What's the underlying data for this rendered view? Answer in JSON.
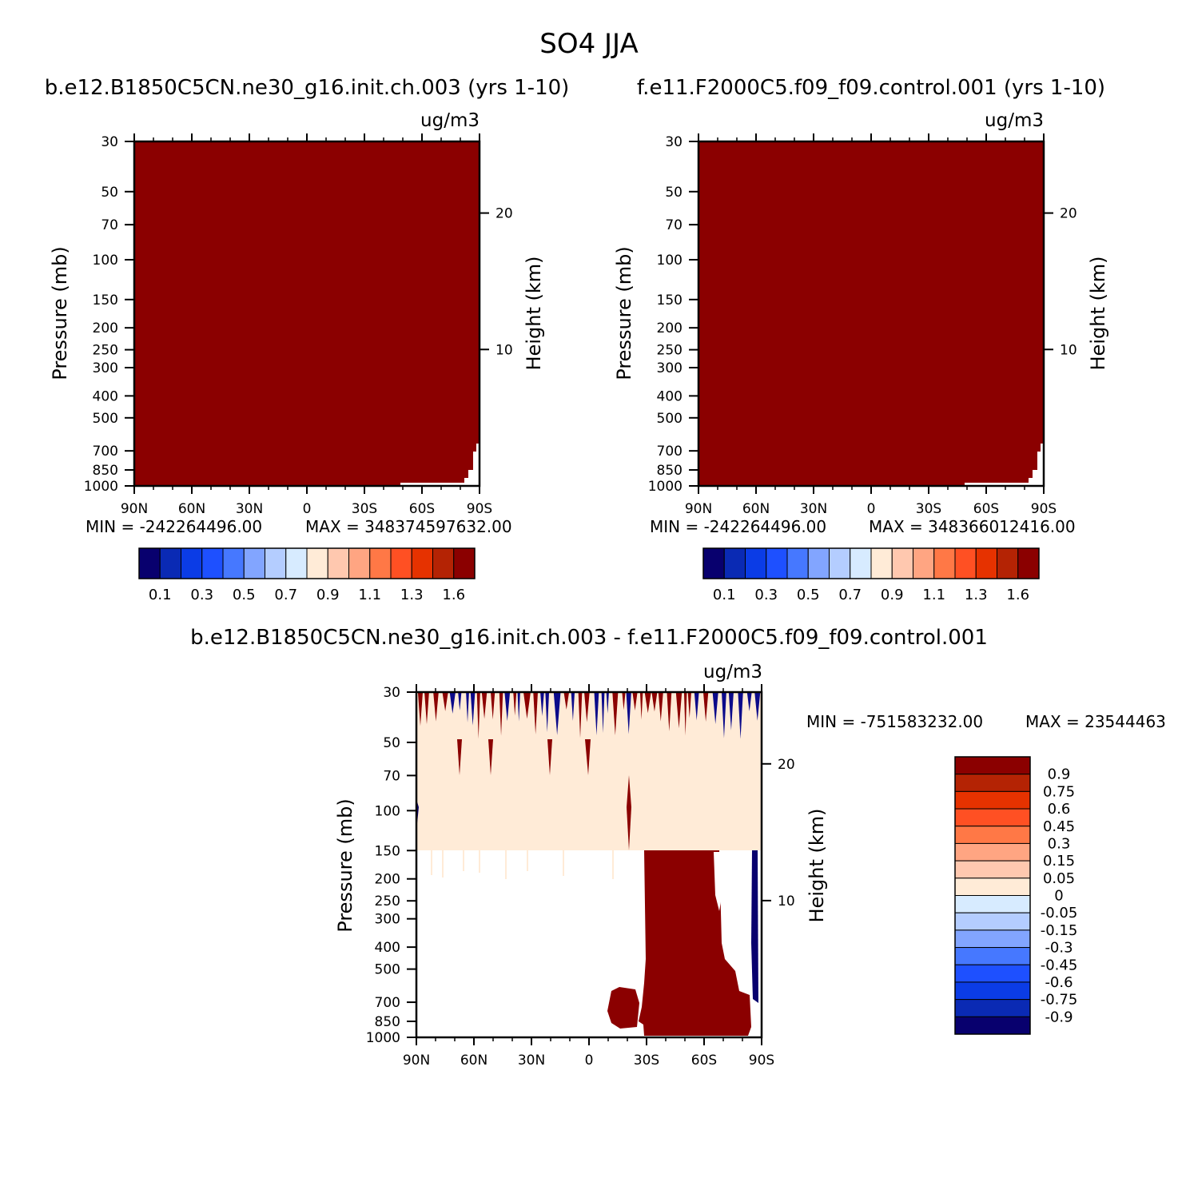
{
  "figure_title": "SO4 JJA",
  "colors": {
    "fill_max": "#8b0000",
    "diverging": [
      "#08006e",
      "#0a2ab4",
      "#0b3ce6",
      "#1e50ff",
      "#4678ff",
      "#82a5ff",
      "#b4cdff",
      "#d7ebff",
      "#ffebd7",
      "#ffc8af",
      "#ffa582",
      "#ff7846",
      "#ff5023",
      "#e63200",
      "#b42304",
      "#8b0000"
    ],
    "diff": [
      "#08006e",
      "#0a2ab4",
      "#0b3ce6",
      "#1e50ff",
      "#4678ff",
      "#82a5ff",
      "#b4cdff",
      "#d7ebff",
      "#ffebd7",
      "#ffc8af",
      "#ffa582",
      "#ff7846",
      "#ff5023",
      "#e63200",
      "#b42304",
      "#8b0000"
    ]
  },
  "chart_data": [
    {
      "type": "heatmap",
      "id": "case1",
      "title": "b.e12.B1850C5CN.ne30_g16.init.ch.003 (yrs 1-10)",
      "units": "ug/m3",
      "xlabel": "",
      "ylabel": "Pressure (mb)",
      "ylabel_right": "Height (km)",
      "x_tick_labels": [
        "90N",
        "60N",
        "30N",
        "0",
        "30S",
        "60S",
        "90S"
      ],
      "y_ticks": [
        30,
        50,
        70,
        100,
        150,
        200,
        250,
        300,
        400,
        500,
        700,
        850,
        1000
      ],
      "y_range": [
        1000,
        30
      ],
      "height_ticks": [
        10,
        20
      ],
      "min_text": "MIN = -242264496.00",
      "max_text": "MAX = 348374597632.00",
      "colorbar_labels": [
        "0.1",
        "0.3",
        "0.5",
        "0.7",
        "0.9",
        "1.1",
        "1.3",
        "1.6"
      ],
      "field_summary": "nearly all values exceed top contour level (1.6)"
    },
    {
      "type": "heatmap",
      "id": "case2",
      "title": "f.e11.F2000C5.f09_f09.control.001 (yrs 1-10)",
      "units": "ug/m3",
      "xlabel": "",
      "ylabel": "Pressure (mb)",
      "ylabel_right": "Height (km)",
      "x_tick_labels": [
        "90N",
        "60N",
        "30N",
        "0",
        "30S",
        "60S",
        "90S"
      ],
      "y_ticks": [
        30,
        50,
        70,
        100,
        150,
        200,
        250,
        300,
        400,
        500,
        700,
        850,
        1000
      ],
      "y_range": [
        1000,
        30
      ],
      "height_ticks": [
        10,
        20
      ],
      "min_text": "MIN = -242264496.00",
      "max_text": "MAX = 348366012416.00",
      "colorbar_labels": [
        "0.1",
        "0.3",
        "0.5",
        "0.7",
        "0.9",
        "1.1",
        "1.3",
        "1.6"
      ],
      "field_summary": "nearly all values exceed top contour level (1.6)"
    },
    {
      "type": "heatmap",
      "id": "diff",
      "title": "b.e12.B1850C5CN.ne30_g16.init.ch.003 - f.e11.F2000C5.f09_f09.control.001",
      "units": "ug/m3",
      "xlabel": "",
      "ylabel": "Pressure (mb)",
      "ylabel_right": "Height (km)",
      "x_tick_labels": [
        "90N",
        "60N",
        "30N",
        "0",
        "30S",
        "60S",
        "90S"
      ],
      "y_ticks": [
        30,
        50,
        70,
        100,
        150,
        200,
        250,
        300,
        400,
        500,
        700,
        850,
        1000
      ],
      "y_range": [
        1000,
        30
      ],
      "height_ticks": [
        10,
        20
      ],
      "min_text": "MIN = -751583232.00",
      "max_text": "MAX = 23544463",
      "colorbar_labels": [
        "0.9",
        "0.75",
        "0.6",
        "0.45",
        "0.3",
        "0.15",
        "0.05",
        "0",
        "-0.05",
        "-0.15",
        "-0.3",
        "-0.45",
        "-0.6",
        "-0.75",
        "-0.9"
      ],
      "field_summary": "noisy +/- near 30-50 mb; 0 to 0.05 band 50-150 mb; strong positive region 30S-70S from 150 mb to surface"
    }
  ]
}
